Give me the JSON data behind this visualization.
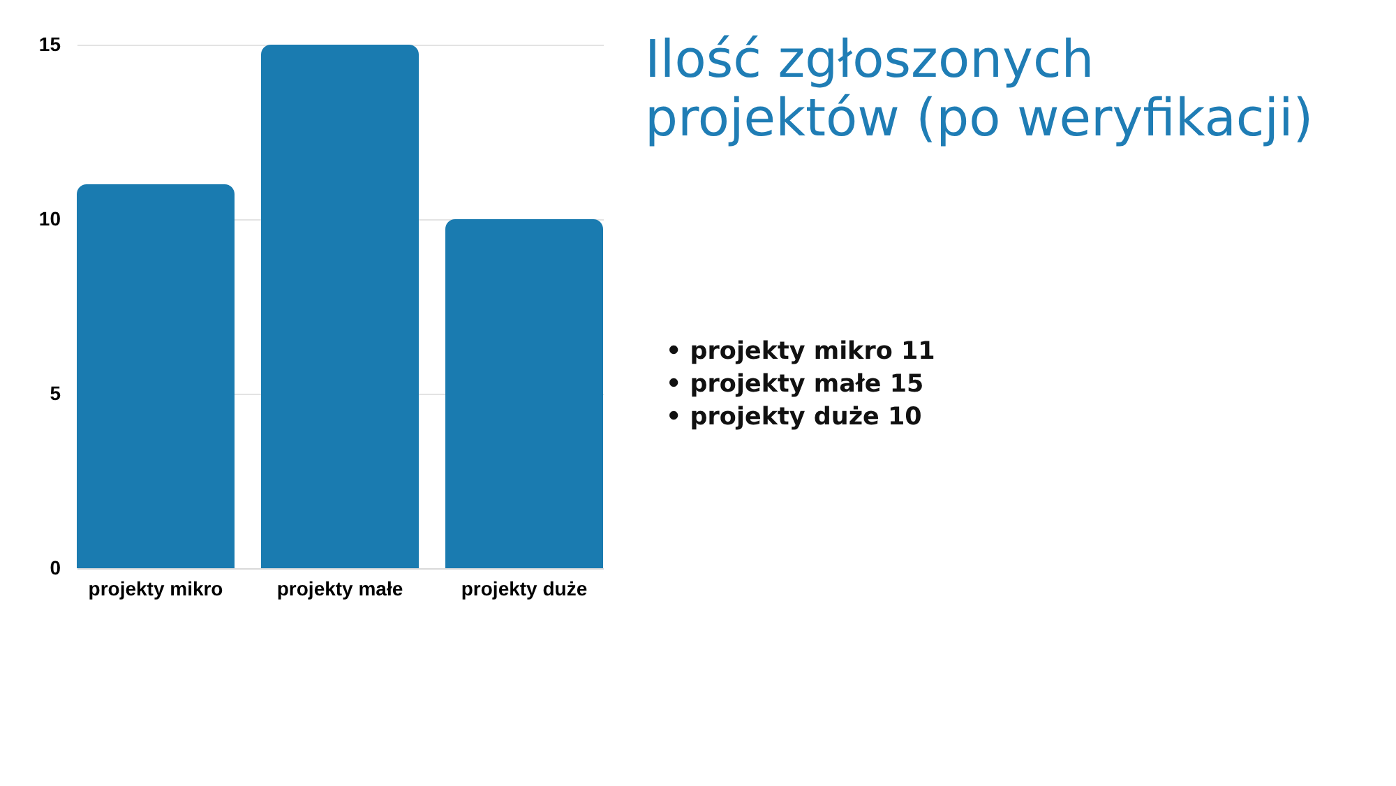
{
  "chart_data": {
    "type": "bar",
    "title": "Ilość zgłoszonych projektów (po weryfikacji)",
    "categories": [
      "projekty mikro",
      "projekty małe",
      "projekty duże"
    ],
    "values": [
      11,
      15,
      10
    ],
    "color": "#1a7bb0",
    "ylim": [
      0,
      15
    ],
    "yticks": [
      0,
      5,
      10,
      15
    ],
    "grid": "y",
    "annotations": [
      "• projekty mikro 11",
      "• projekty małe 15",
      "• projekty duże 10"
    ]
  }
}
